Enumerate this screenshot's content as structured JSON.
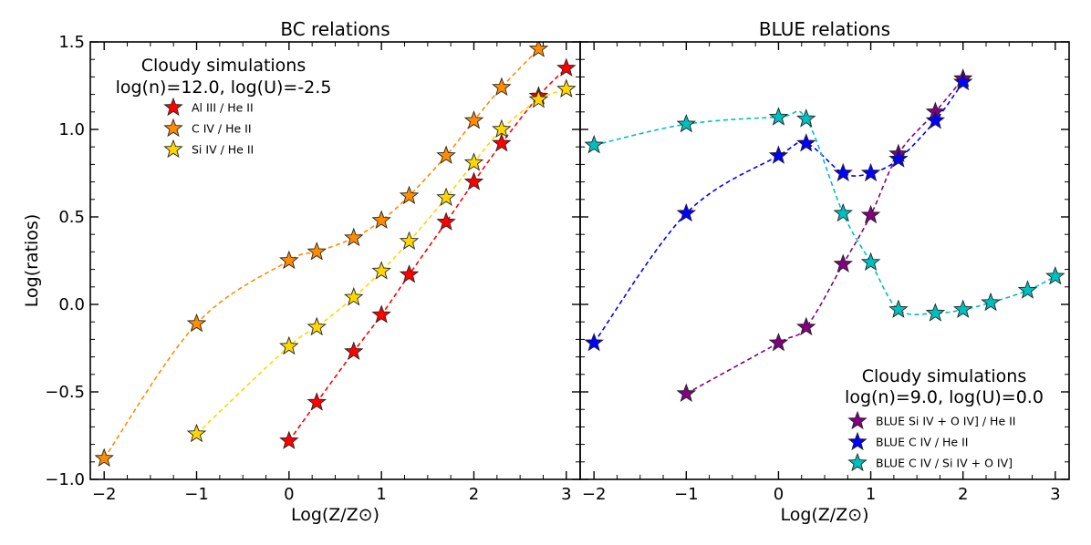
{
  "ylabel": "Log(ratios)",
  "chart_data": [
    {
      "type": "line",
      "title": "BC relations",
      "xlabel": "Log(Z/Z⊙)",
      "ylabel": "Log(ratios)",
      "xlim": [
        -2.15,
        3.15
      ],
      "ylim": [
        -1.0,
        1.5
      ],
      "xticks": [
        -2,
        -1,
        0,
        1,
        2,
        3
      ],
      "yticks": [
        -1.0,
        -0.5,
        0.0,
        0.5,
        1.0,
        1.5
      ],
      "annotation": [
        "Cloudy simulations",
        "log(n)=12.0, log(U)=-2.5"
      ],
      "legend_position": "upper-left",
      "series": [
        {
          "name": "Al III / He II",
          "color": "#ff0000",
          "x": [
            0.0,
            0.3,
            0.7,
            1.0,
            1.3,
            1.7,
            2.0,
            2.3,
            2.7,
            3.0
          ],
          "y": [
            -0.78,
            -0.56,
            -0.27,
            -0.06,
            0.17,
            0.47,
            0.7,
            0.92,
            1.19,
            1.35
          ]
        },
        {
          "name": "C IV / He II",
          "color": "#ff8c00",
          "x": [
            -2.0,
            -1.0,
            0.0,
            0.3,
            0.7,
            1.0,
            1.3,
            1.7,
            2.0,
            2.3,
            2.7
          ],
          "y": [
            -0.88,
            -0.11,
            0.25,
            0.3,
            0.38,
            0.48,
            0.62,
            0.85,
            1.05,
            1.24,
            1.46
          ]
        },
        {
          "name": "Si IV / He II",
          "color": "#ffd700",
          "x": [
            -1.0,
            0.0,
            0.3,
            0.7,
            1.0,
            1.3,
            1.7,
            2.0,
            2.3,
            2.7,
            3.0
          ],
          "y": [
            -0.74,
            -0.24,
            -0.13,
            0.04,
            0.19,
            0.36,
            0.61,
            0.81,
            1.0,
            1.17,
            1.23
          ]
        }
      ]
    },
    {
      "type": "line",
      "title": "BLUE relations",
      "xlabel": "Log(Z/Z⊙)",
      "xlim": [
        -2.15,
        3.15
      ],
      "ylim": [
        -1.0,
        1.5
      ],
      "xticks": [
        -2,
        -1,
        0,
        1,
        2,
        3
      ],
      "annotation": [
        "Cloudy simulations",
        "log(n)=9.0, log(U)=0.0"
      ],
      "legend_position": "lower-right",
      "series": [
        {
          "name": "BLUE Si IV + O IV] / He II",
          "color": "#800080",
          "x": [
            -1.0,
            0.0,
            0.3,
            0.7,
            1.0,
            1.3,
            1.7,
            2.0
          ],
          "y": [
            -0.51,
            -0.22,
            -0.13,
            0.23,
            0.51,
            0.86,
            1.1,
            1.29
          ]
        },
        {
          "name": "BLUE C IV / He II",
          "color": "#0000ff",
          "x": [
            -2.0,
            -1.0,
            0.0,
            0.3,
            0.7,
            1.0,
            1.3,
            1.7,
            2.0
          ],
          "y": [
            -0.22,
            0.52,
            0.85,
            0.92,
            0.75,
            0.75,
            0.83,
            1.05,
            1.27
          ]
        },
        {
          "name": "BLUE C IV / Si IV + O IV]",
          "color": "#00bfbf",
          "x": [
            -2.0,
            -1.0,
            0.0,
            0.3,
            0.7,
            1.0,
            1.3,
            1.7,
            2.0,
            2.3,
            2.7,
            3.0
          ],
          "y": [
            0.91,
            1.03,
            1.07,
            1.06,
            0.52,
            0.24,
            -0.03,
            -0.05,
            -0.03,
            0.01,
            0.08,
            0.16
          ]
        }
      ]
    }
  ]
}
